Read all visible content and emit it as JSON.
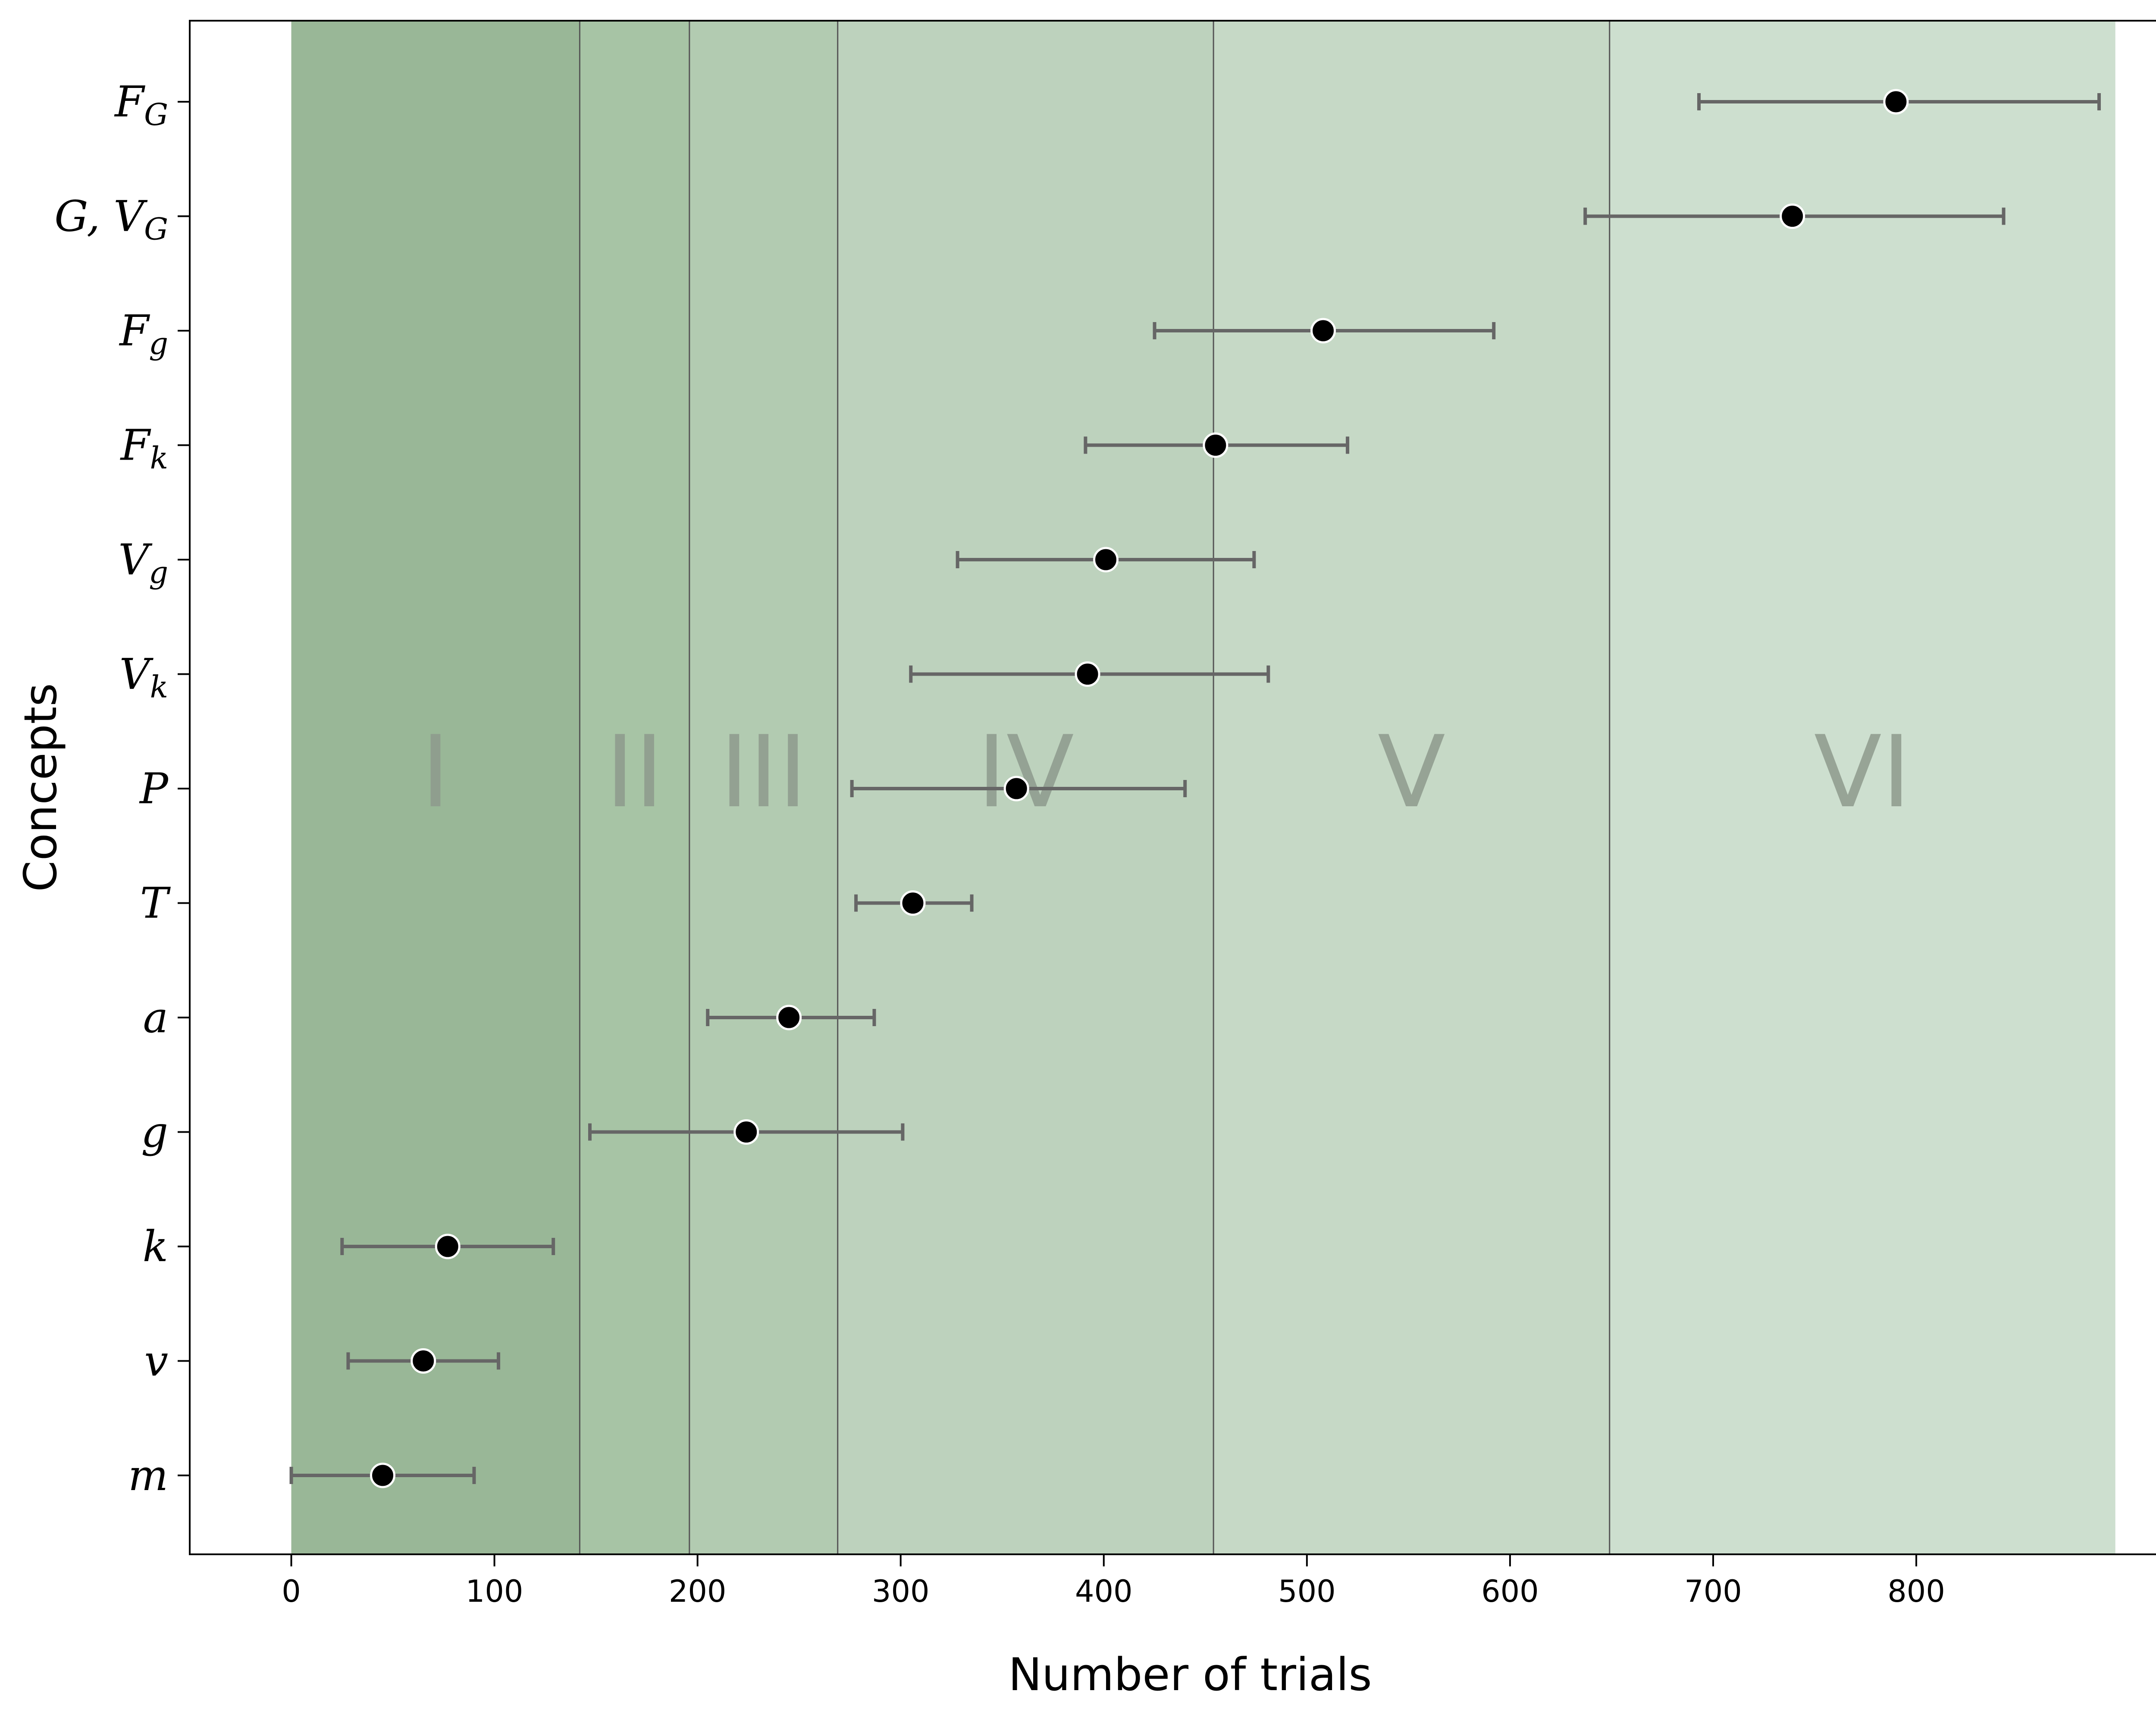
{
  "chart_data": {
    "type": "scatter",
    "xlabel": "Number of trials",
    "ylabel": "Concepts",
    "xlim": [
      -50,
      935
    ],
    "xticks": [
      0,
      100,
      200,
      300,
      400,
      500,
      600,
      700,
      800
    ],
    "grid": false,
    "concepts": [
      {
        "label": "F",
        "sub": "G",
        "x": 790,
        "xerr_low": 693,
        "xerr_high": 890
      },
      {
        "label": "G, V",
        "sub": "G",
        "x": 739,
        "xerr_low": 637,
        "xerr_high": 843
      },
      {
        "label": "F",
        "sub": "g",
        "x": 508,
        "xerr_low": 425,
        "xerr_high": 592
      },
      {
        "label": "F",
        "sub": "k",
        "x": 455,
        "xerr_low": 391,
        "xerr_high": 520
      },
      {
        "label": "V",
        "sub": "g",
        "x": 401,
        "xerr_low": 328,
        "xerr_high": 474
      },
      {
        "label": "V",
        "sub": "k",
        "x": 392,
        "xerr_low": 305,
        "xerr_high": 481
      },
      {
        "label": "P",
        "sub": "",
        "x": 357,
        "xerr_low": 276,
        "xerr_high": 440
      },
      {
        "label": "T",
        "sub": "",
        "x": 306,
        "xerr_low": 278,
        "xerr_high": 335
      },
      {
        "label": "a",
        "sub": "",
        "x": 245,
        "xerr_low": 205,
        "xerr_high": 287
      },
      {
        "label": "g",
        "sub": "",
        "x": 224,
        "xerr_low": 147,
        "xerr_high": 301
      },
      {
        "label": "k",
        "sub": "",
        "x": 77,
        "xerr_low": 25,
        "xerr_high": 129
      },
      {
        "label": "v",
        "sub": "",
        "x": 65,
        "xerr_low": 28,
        "xerr_high": 102
      },
      {
        "label": "m",
        "sub": "",
        "x": 45,
        "xerr_low": 0,
        "xerr_high": 90
      }
    ],
    "zones": [
      {
        "label": "I",
        "from": 0,
        "to": 142,
        "color": "#99b797"
      },
      {
        "label": "II",
        "from": 142,
        "to": 196,
        "color": "#a7c4a5"
      },
      {
        "label": "III",
        "from": 196,
        "to": 269,
        "color": "#b2cbb1"
      },
      {
        "label": "IV",
        "from": 269,
        "to": 454,
        "color": "#bdd2bd"
      },
      {
        "label": "V",
        "from": 454,
        "to": 649,
        "color": "#c6d9c6"
      },
      {
        "label": "VI",
        "from": 649,
        "to": 898,
        "color": "#cddfcf"
      }
    ],
    "colors": {
      "marker": "#000000",
      "errorbar": "#666666",
      "boundary": "#555555"
    }
  }
}
